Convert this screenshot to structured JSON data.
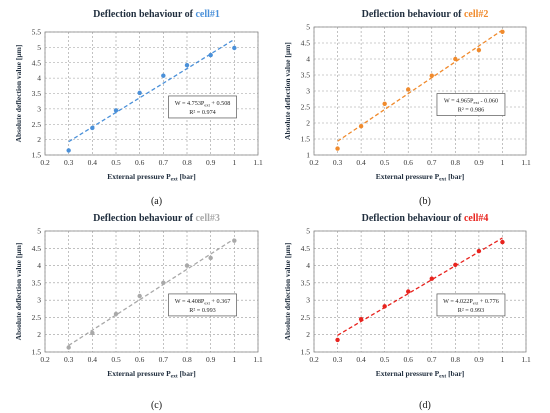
{
  "chart_data": [
    {
      "type": "scatter",
      "title_prefix": "Deflection behaviour of ",
      "title_highlight": "cell#1",
      "accent": "#4a90d9",
      "xlabel_main": "External pressure P",
      "xlabel_sub": "ext",
      "xlabel_unit": " [bar]",
      "ylabel": "Absolute deflection value [µm]",
      "xlim": [
        0.2,
        1.1
      ],
      "ylim": [
        1.5,
        5.5
      ],
      "xticks": [
        "0.2",
        "0.3",
        "0.4",
        "0.5",
        "0.6",
        "0.7",
        "0.8",
        "0.9",
        "1",
        "1.1"
      ],
      "yticks": [
        "1.5",
        "2",
        "2.5",
        "3",
        "3.5",
        "4",
        "4.5",
        "5",
        "5.5"
      ],
      "x": [
        0.3,
        0.4,
        0.5,
        0.6,
        0.7,
        0.8,
        0.9,
        1.0
      ],
      "y": [
        1.65,
        2.38,
        2.95,
        3.52,
        4.08,
        4.42,
        4.75,
        4.98
      ],
      "fit": [
        4.753,
        0.508
      ],
      "equation_pre": "W = 4.753P",
      "equation_sub": "ext",
      "equation_post": " + 0.508",
      "r2": "R² = 0.974",
      "caption": "(a)"
    },
    {
      "type": "scatter",
      "title_prefix": "Deflection behaviour of ",
      "title_highlight": "cell#2",
      "accent": "#f08a2c",
      "xlabel_main": "External pressure P",
      "xlabel_sub": "ext",
      "xlabel_unit": " [bar]",
      "ylabel": "Absolute deflection value [µm]",
      "xlim": [
        0.2,
        1.1
      ],
      "ylim": [
        1,
        5
      ],
      "xticks": [
        "0.2",
        "0.3",
        "0.4",
        "0.5",
        "0.6",
        "0.7",
        "0.8",
        "0.9",
        "1",
        "1.1"
      ],
      "yticks": [
        "1",
        "1.5",
        "2",
        "2.5",
        "3",
        "3.5",
        "4",
        "4.5",
        "5"
      ],
      "x": [
        0.3,
        0.4,
        0.5,
        0.6,
        0.7,
        0.8,
        0.9,
        1.0
      ],
      "y": [
        1.2,
        1.9,
        2.6,
        3.05,
        3.48,
        4.0,
        4.28,
        4.85
      ],
      "fit": [
        4.965,
        -0.06
      ],
      "equation_pre": "W = 4.965P",
      "equation_sub": "ext",
      "equation_post": " - 0.060",
      "r2": "R² = 0.986",
      "caption": "(b)"
    },
    {
      "type": "scatter",
      "title_prefix": "Deflection behaviour of ",
      "title_highlight": "cell#3",
      "accent": "#a9a9a9",
      "xlabel_main": "External pressure P",
      "xlabel_sub": "ext",
      "xlabel_unit": " [bar]",
      "ylabel": "Absolute deflection value [µm]",
      "xlim": [
        0.2,
        1.1
      ],
      "ylim": [
        1.5,
        5
      ],
      "xticks": [
        "0.2",
        "0.3",
        "0.4",
        "0.5",
        "0.6",
        "0.7",
        "0.8",
        "0.9",
        "1",
        "1.1"
      ],
      "yticks": [
        "1.5",
        "2",
        "2.5",
        "3",
        "3.5",
        "4",
        "4.5",
        "5"
      ],
      "x": [
        0.3,
        0.4,
        0.5,
        0.6,
        0.7,
        0.8,
        0.9,
        1.0
      ],
      "y": [
        1.63,
        2.05,
        2.6,
        3.12,
        3.5,
        4.0,
        4.22,
        4.72
      ],
      "fit": [
        4.408,
        0.367
      ],
      "equation_pre": "W = 4.408P",
      "equation_sub": "ext",
      "equation_post": " + 0.367",
      "r2": "R² = 0.993",
      "caption": "(c)"
    },
    {
      "type": "scatter",
      "title_prefix": "Deflection behaviour of ",
      "title_highlight": "cell#4",
      "accent": "#e8231e",
      "xlabel_main": "External pressure P",
      "xlabel_sub": "ext",
      "xlabel_unit": " [bar]",
      "ylabel": "Absolute deflection value [µm]",
      "xlim": [
        0.2,
        1.1
      ],
      "ylim": [
        1.5,
        5
      ],
      "xticks": [
        "0.2",
        "0.3",
        "0.4",
        "0.5",
        "0.6",
        "0.7",
        "0.8",
        "0.9",
        "1",
        "1.1"
      ],
      "yticks": [
        "1.5",
        "2",
        "2.5",
        "3",
        "3.5",
        "4",
        "4.5",
        "5"
      ],
      "x": [
        0.3,
        0.4,
        0.5,
        0.6,
        0.7,
        0.8,
        0.9,
        1.0
      ],
      "y": [
        1.85,
        2.45,
        2.82,
        3.25,
        3.62,
        4.02,
        4.42,
        4.68
      ],
      "fit": [
        4.022,
        0.776
      ],
      "equation_pre": "W = 4.022P",
      "equation_sub": "ext",
      "equation_post": " + 0.776",
      "r2": "R² = 0.993",
      "caption": "(d)"
    }
  ]
}
